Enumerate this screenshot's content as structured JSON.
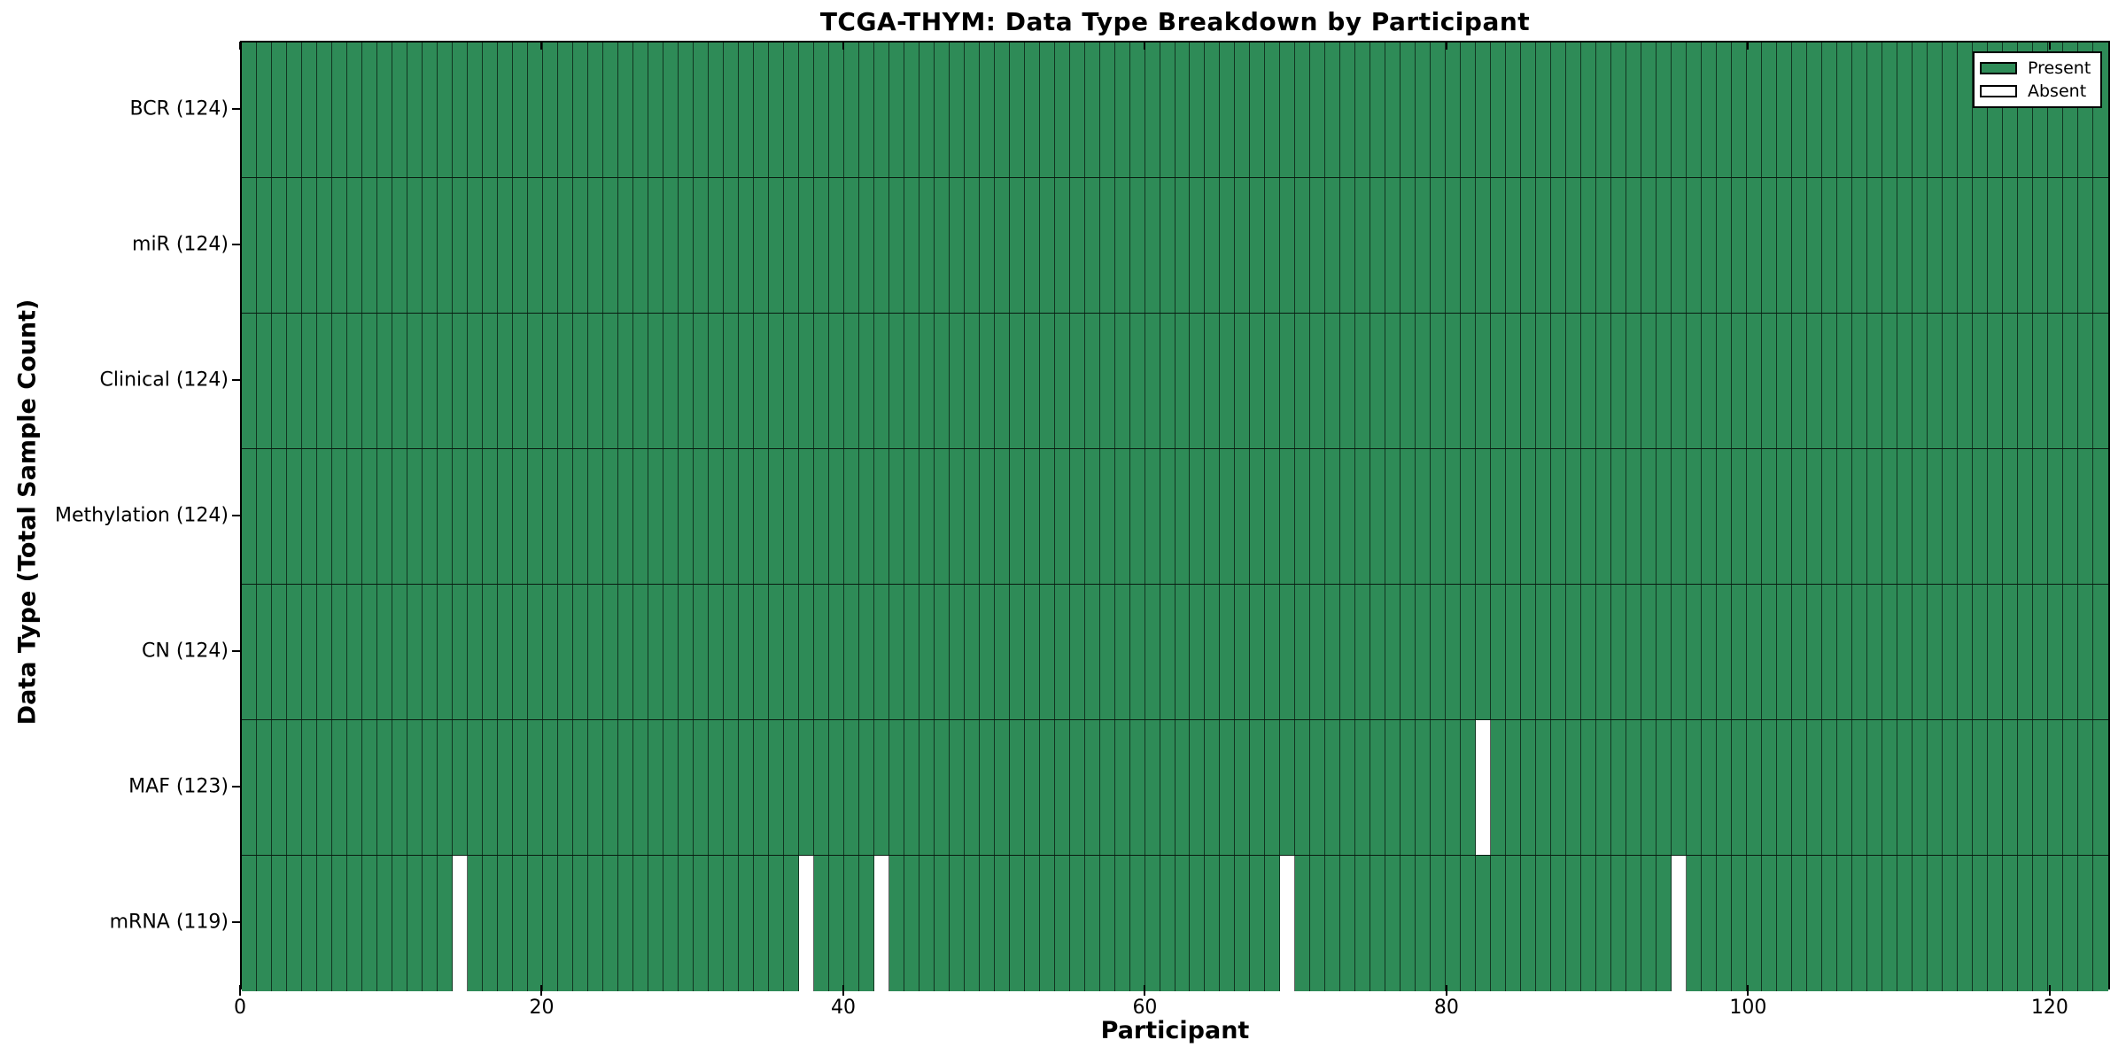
{
  "title": "TCGA-THYM: Data Type Breakdown by Participant",
  "chart_data": {
    "type": "heatmap",
    "title": "TCGA-THYM: Data Type Breakdown by Participant",
    "xlabel": "Participant",
    "ylabel": "Data Type (Total Sample Count)",
    "xlim": [
      0,
      124
    ],
    "x_ticks": [
      0,
      20,
      40,
      60,
      80,
      100,
      120
    ],
    "n_participants": 124,
    "grid": "cell-edges",
    "legend": {
      "position": "upper right",
      "entries": [
        {
          "label": "Present",
          "color": "#2e8b57"
        },
        {
          "label": "Absent",
          "color": "#ffffff"
        }
      ]
    },
    "colors": {
      "present": "#2e8b57",
      "absent": "#ffffff",
      "edge": "#000000"
    },
    "rows": [
      {
        "label": "BCR (124)",
        "data_type": "BCR",
        "total_sample_count": 124,
        "absent_participants": []
      },
      {
        "label": "miR (124)",
        "data_type": "miR",
        "total_sample_count": 124,
        "absent_participants": []
      },
      {
        "label": "Clinical (124)",
        "data_type": "Clinical",
        "total_sample_count": 124,
        "absent_participants": []
      },
      {
        "label": "Methylation (124)",
        "data_type": "Methylation",
        "total_sample_count": 124,
        "absent_participants": []
      },
      {
        "label": "CN (124)",
        "data_type": "CN",
        "total_sample_count": 124,
        "absent_participants": []
      },
      {
        "label": "MAF (123)",
        "data_type": "MAF",
        "total_sample_count": 123,
        "absent_participants": [
          82
        ]
      },
      {
        "label": "mRNA (119)",
        "data_type": "mRNA",
        "total_sample_count": 119,
        "absent_participants": [
          14,
          37,
          42,
          69,
          95
        ]
      }
    ]
  }
}
